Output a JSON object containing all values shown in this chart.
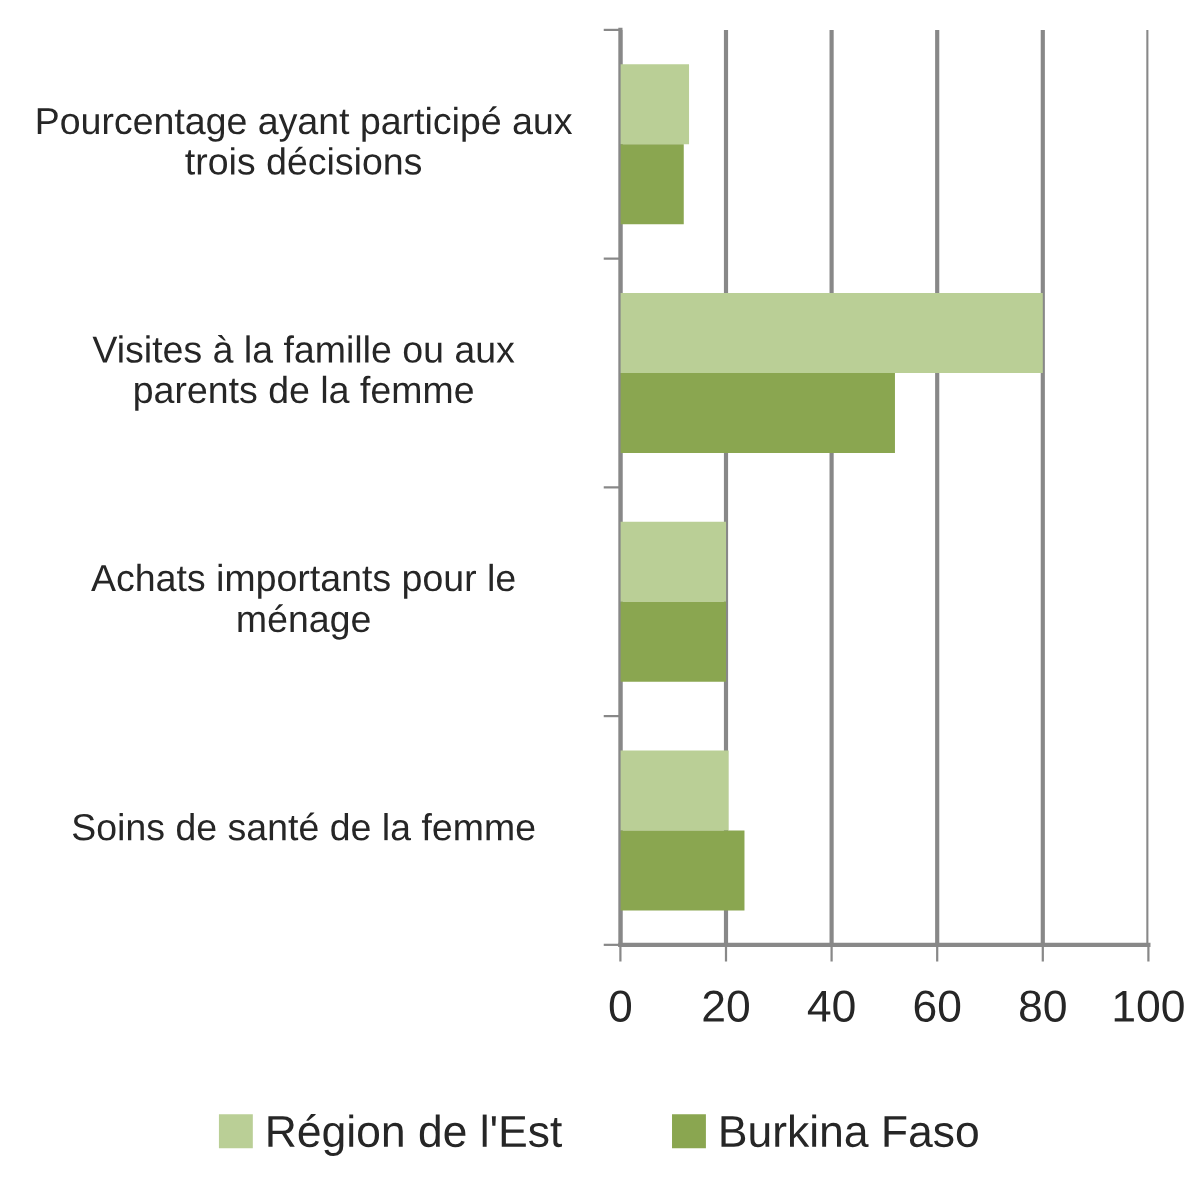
{
  "chart_data": {
    "type": "bar",
    "orientation": "horizontal",
    "categories": [
      "Pourcentage ayant participé aux trois décisions",
      "Visites à la famille ou aux parents de la femme",
      "Achats importants pour le ménage",
      "Soins de santé de la femme"
    ],
    "series": [
      {
        "name": "Région de l'Est",
        "color": "#bacf96",
        "values": [
          13,
          80,
          20,
          20.5
        ]
      },
      {
        "name": "Burkina Faso",
        "color": "#8aa650",
        "values": [
          12,
          52,
          20,
          23.5
        ]
      }
    ],
    "xlim": [
      0,
      100
    ],
    "xticks": [
      0,
      20,
      40,
      60,
      80,
      100
    ],
    "grid": "x",
    "legend": "bottom"
  }
}
